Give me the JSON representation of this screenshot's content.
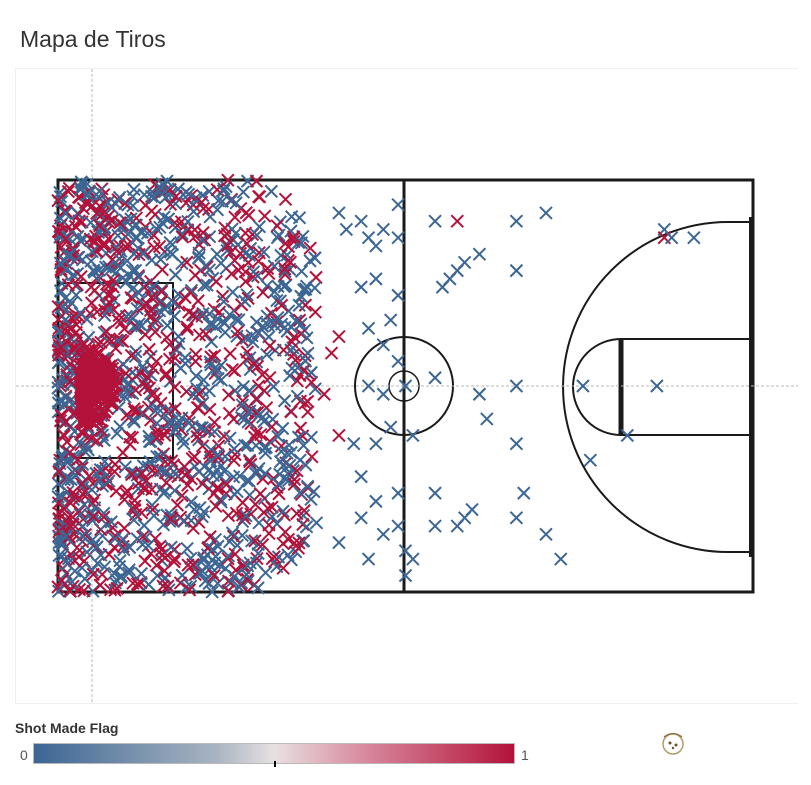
{
  "page": {
    "title": "Mapa de Tiros"
  },
  "legend": {
    "title": "Shot Made Flag",
    "min_label": "0",
    "max_label": "1",
    "color_low": "#3c6694",
    "color_mid": "#e7e1e1",
    "color_high": "#b3123a"
  },
  "chart_data": {
    "type": "scatter",
    "title": "Mapa de Tiros",
    "marker": "x",
    "color_field": "Shot Made Flag",
    "color_scale": [
      "#3c6694",
      "#b3123a"
    ],
    "axes_visible": false,
    "reference_lines": "crosshair dashed gray",
    "x_range": [
      0,
      94
    ],
    "y_range": [
      0,
      50
    ],
    "x_label": "",
    "y_label": "",
    "background": "half-court line drawing",
    "dense_region": {
      "x_range": [
        0,
        35
      ],
      "y_range": [
        0,
        50
      ],
      "description_mix": "made (1) and missed (0) shots heavily overlapping near the basket"
    },
    "sparse_points": [
      {
        "x": 38,
        "y": 46,
        "made": 0
      },
      {
        "x": 39,
        "y": 44,
        "made": 0
      },
      {
        "x": 41,
        "y": 45,
        "made": 0
      },
      {
        "x": 42,
        "y": 43,
        "made": 0
      },
      {
        "x": 43,
        "y": 42,
        "made": 0
      },
      {
        "x": 44,
        "y": 44,
        "made": 0
      },
      {
        "x": 46,
        "y": 47,
        "made": 0
      },
      {
        "x": 46,
        "y": 43,
        "made": 0
      },
      {
        "x": 43,
        "y": 38,
        "made": 0
      },
      {
        "x": 41,
        "y": 37,
        "made": 0
      },
      {
        "x": 46,
        "y": 36,
        "made": 0
      },
      {
        "x": 45,
        "y": 33,
        "made": 0
      },
      {
        "x": 42,
        "y": 32,
        "made": 0
      },
      {
        "x": 44,
        "y": 30,
        "made": 0
      },
      {
        "x": 46,
        "y": 28,
        "made": 0
      },
      {
        "x": 47,
        "y": 25,
        "made": 0
      },
      {
        "x": 44,
        "y": 24,
        "made": 0
      },
      {
        "x": 42,
        "y": 25,
        "made": 0
      },
      {
        "x": 45,
        "y": 20,
        "made": 0
      },
      {
        "x": 43,
        "y": 18,
        "made": 0
      },
      {
        "x": 40,
        "y": 18,
        "made": 0
      },
      {
        "x": 41,
        "y": 14,
        "made": 0
      },
      {
        "x": 43,
        "y": 11,
        "made": 0
      },
      {
        "x": 46,
        "y": 12,
        "made": 0
      },
      {
        "x": 46,
        "y": 8,
        "made": 0
      },
      {
        "x": 44,
        "y": 7,
        "made": 0
      },
      {
        "x": 41,
        "y": 9,
        "made": 0
      },
      {
        "x": 38,
        "y": 6,
        "made": 0
      },
      {
        "x": 42,
        "y": 4,
        "made": 0
      },
      {
        "x": 47,
        "y": 2,
        "made": 0
      },
      {
        "x": 48,
        "y": 4,
        "made": 0
      },
      {
        "x": 47,
        "y": 5,
        "made": 0
      },
      {
        "x": 51,
        "y": 45,
        "made": 0
      },
      {
        "x": 54,
        "y": 45,
        "made": 1
      },
      {
        "x": 62,
        "y": 45,
        "made": 0
      },
      {
        "x": 66,
        "y": 46,
        "made": 0
      },
      {
        "x": 53,
        "y": 38,
        "made": 0
      },
      {
        "x": 54,
        "y": 39,
        "made": 0
      },
      {
        "x": 55,
        "y": 40,
        "made": 0
      },
      {
        "x": 57,
        "y": 41,
        "made": 0
      },
      {
        "x": 52,
        "y": 37,
        "made": 0
      },
      {
        "x": 62,
        "y": 39,
        "made": 0
      },
      {
        "x": 51,
        "y": 26,
        "made": 0
      },
      {
        "x": 57,
        "y": 24,
        "made": 0
      },
      {
        "x": 58,
        "y": 21,
        "made": 0
      },
      {
        "x": 62,
        "y": 25,
        "made": 0
      },
      {
        "x": 62,
        "y": 18,
        "made": 0
      },
      {
        "x": 48,
        "y": 19,
        "made": 0
      },
      {
        "x": 51,
        "y": 12,
        "made": 0
      },
      {
        "x": 51,
        "y": 8,
        "made": 0
      },
      {
        "x": 54,
        "y": 8,
        "made": 0
      },
      {
        "x": 55,
        "y": 9,
        "made": 0
      },
      {
        "x": 56,
        "y": 10,
        "made": 0
      },
      {
        "x": 62,
        "y": 9,
        "made": 0
      },
      {
        "x": 63,
        "y": 12,
        "made": 0
      },
      {
        "x": 66,
        "y": 7,
        "made": 0
      },
      {
        "x": 68,
        "y": 4,
        "made": 0
      },
      {
        "x": 71,
        "y": 25,
        "made": 0
      },
      {
        "x": 72,
        "y": 16,
        "made": 0
      },
      {
        "x": 77,
        "y": 19,
        "made": 0
      },
      {
        "x": 81,
        "y": 25,
        "made": 0
      },
      {
        "x": 82,
        "y": 44,
        "made": 0
      },
      {
        "x": 82,
        "y": 43,
        "made": 1
      },
      {
        "x": 83,
        "y": 43,
        "made": 0
      },
      {
        "x": 86,
        "y": 43,
        "made": 0
      },
      {
        "x": 38,
        "y": 31,
        "made": 1
      },
      {
        "x": 37,
        "y": 29,
        "made": 1
      },
      {
        "x": 38,
        "y": 19,
        "made": 1
      },
      {
        "x": 36,
        "y": 24,
        "made": 1
      }
    ]
  }
}
